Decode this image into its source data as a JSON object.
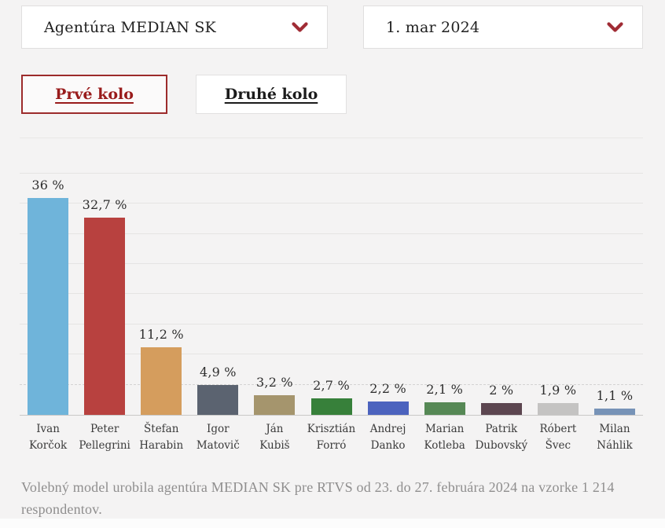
{
  "controls": {
    "agency_select": {
      "value": "Agentúra MEDIAN SK"
    },
    "date_select": {
      "value": "1. mar 2024"
    },
    "tabs": [
      {
        "label": "Prvé kolo",
        "active": true
      },
      {
        "label": "Druhé kolo",
        "active": false
      }
    ]
  },
  "chart_data": {
    "type": "bar",
    "title": "",
    "xlabel": "",
    "ylabel": "",
    "ylim": [
      0,
      46.1
    ],
    "grid": true,
    "gridline_step_pct": 5,
    "solid_gridlines_pct": [
      10,
      15,
      20,
      25,
      30,
      35,
      40
    ],
    "dashed_threshold_pct": 5,
    "categories": [
      [
        "Ivan",
        "Korčok"
      ],
      [
        "Peter",
        "Pellegrini"
      ],
      [
        "Štefan",
        "Harabin"
      ],
      [
        "Igor",
        "Matovič"
      ],
      [
        "Ján",
        "Kubiš"
      ],
      [
        "Krisztián",
        "Forró"
      ],
      [
        "Andrej",
        "Danko"
      ],
      [
        "Marian",
        "Kotleba"
      ],
      [
        "Patrik",
        "Dubovský"
      ],
      [
        "Róbert",
        "Švec"
      ],
      [
        "Milan",
        "Náhlik"
      ]
    ],
    "values": [
      36,
      32.7,
      11.2,
      4.9,
      3.2,
      2.7,
      2.2,
      2.1,
      2,
      1.9,
      1.1
    ],
    "value_labels": [
      "36 %",
      "32,7 %",
      "11,2 %",
      "4,9 %",
      "3,2 %",
      "2,7 %",
      "2,2 %",
      "2,1 %",
      "2 %",
      "1,9 %",
      "1,1 %"
    ],
    "bar_colors": [
      "#6fb4da",
      "#b8413f",
      "#d59d5d",
      "#5b6370",
      "#a5956d",
      "#37803a",
      "#4c63be",
      "#568855",
      "#5c4650",
      "#c4c3c2",
      "#7793b7"
    ]
  },
  "icons": {
    "chevron_down": "chevron-down"
  },
  "footer": {
    "note": "Volebný model urobila agentúra MEDIAN SK pre RTVS od 23. do 27. februára 2024 na vzorke 1 214 respondentov."
  },
  "colors": {
    "page_bg": "#f4f3f3",
    "card_bg": "#ffffff",
    "card_border": "#e0dfdf",
    "accent_red": "#a02c35",
    "active_tab_text": "#991b1b",
    "active_tab_border": "#9c2b2b",
    "grid_solid": "#e5e4e3",
    "grid_dashed": "#d4d3d2",
    "axis_line": "#c9c8c7",
    "value_text": "#2d2d2d",
    "name_text": "#3b3b3b",
    "footnote_text": "#8f8e8e"
  }
}
